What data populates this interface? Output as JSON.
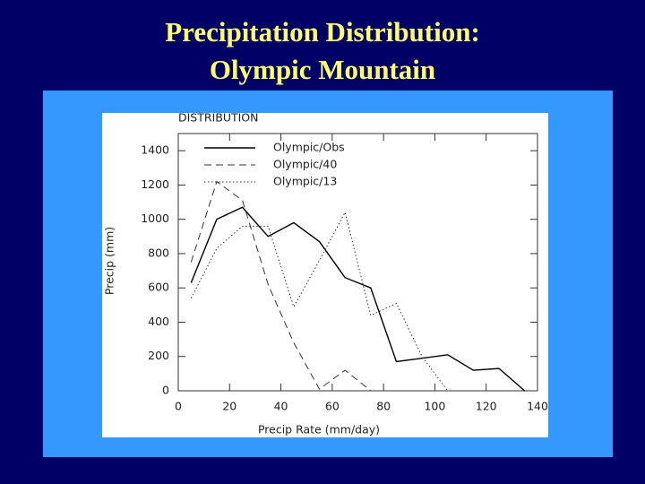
{
  "slide_title": [
    "Precipitation Distribution:",
    "Olympic Mountain"
  ],
  "chart_data": {
    "type": "line",
    "title": "DISTRIBUTION",
    "x_label": "Precip Rate (mm/day)",
    "y_label": "Precip (mm)",
    "x": [
      5,
      15,
      25,
      35,
      45,
      55,
      65,
      75,
      85,
      95,
      105,
      115,
      125,
      135
    ],
    "series": [
      {
        "name": "Olympic/Obs",
        "color": "#000000",
        "dash": "solid",
        "values": [
          630,
          1000,
          1070,
          900,
          980,
          870,
          660,
          600,
          170,
          190,
          210,
          120,
          130,
          0
        ]
      },
      {
        "name": "Olympic/40",
        "color": "#333333",
        "dash": "dashed",
        "values": [
          750,
          1220,
          1110,
          620,
          280,
          10,
          120,
          0,
          null,
          null,
          null,
          null,
          null,
          null
        ]
      },
      {
        "name": "Olympic/13",
        "color": "#333333",
        "dash": "dotted",
        "values": [
          540,
          830,
          960,
          960,
          490,
          760,
          1040,
          440,
          510,
          200,
          0,
          null,
          null,
          null
        ]
      }
    ],
    "xlim": [
      0,
      140
    ],
    "xticks": [
      0,
      20,
      40,
      60,
      80,
      100,
      120,
      140
    ],
    "ylim": [
      0,
      1500
    ],
    "yticks": [
      0,
      200,
      400,
      600,
      800,
      1000,
      1200,
      1400
    ],
    "legend": "upper left"
  }
}
